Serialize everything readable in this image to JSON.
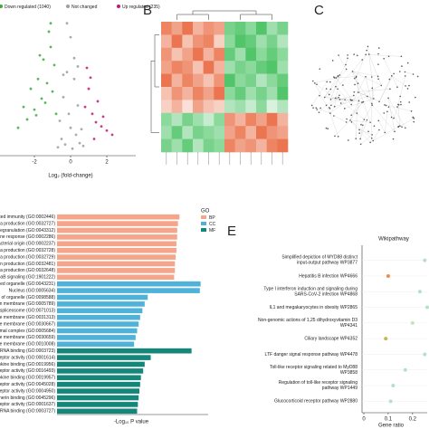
{
  "chart_data": [
    {
      "type": "scatter",
      "x_label": "Log₂ (fold-change)",
      "xlim": [
        -3.9,
        3.6
      ],
      "ylim": [
        0,
        10
      ],
      "xticks": [
        -2,
        0,
        2
      ],
      "series": [
        {
          "name": "Down regulated (1040)",
          "color": "#3daa3d",
          "x": [
            -0.9,
            -1.1,
            -1.3,
            -1.6,
            -2.0,
            -2.4,
            -1.2,
            -1.5,
            -1.8,
            -2.9,
            -1.0,
            -1.4,
            -2.2,
            -0.8,
            -1.7,
            -1.9,
            -2.6,
            -1.1
          ],
          "values": [
            6.5,
            7.8,
            5.2,
            4.1,
            3.3,
            2.6,
            8.9,
            6.9,
            5.5,
            2.0,
            4.6,
            3.8,
            4.8,
            3.0,
            7.2,
            2.9,
            3.5,
            9.5
          ]
        },
        {
          "name": "Not changed",
          "color": "#9e9e9e",
          "x": [
            -0.6,
            -0.4,
            -0.2,
            0,
            0.2,
            0.4,
            0.6,
            -0.5,
            -0.3,
            0.1,
            0.3,
            0.5,
            -0.1,
            0.0,
            -0.7,
            0.7,
            -0.2,
            0.2,
            0.4,
            -0.4
          ],
          "values": [
            2.5,
            4.2,
            6.0,
            8.5,
            5.5,
            3.6,
            1.9,
            1.2,
            0.8,
            0.5,
            1.5,
            0.9,
            3.0,
            2.0,
            0.6,
            0.7,
            9.5,
            7.0,
            6.4,
            5.8
          ]
        },
        {
          "name": "Up regulated (235)",
          "color": "#c2187a",
          "x": [
            0.8,
            1.0,
            1.2,
            1.4,
            1.7,
            2.0,
            2.3,
            1.1,
            1.5,
            0.9,
            1.8,
            1.3
          ],
          "values": [
            3.5,
            4.8,
            3.0,
            2.4,
            2.1,
            1.8,
            1.5,
            5.6,
            3.9,
            6.3,
            2.8,
            1.2
          ]
        }
      ]
    },
    {
      "type": "heatmap",
      "panel": "B",
      "matrix": [
        [
          0.8,
          0.6,
          0.9,
          0.5,
          0.7,
          0.6,
          -0.7,
          -0.8,
          -0.6,
          -0.9,
          -0.5,
          -0.7
        ],
        [
          0.5,
          0.9,
          0.4,
          0.7,
          0.8,
          0.3,
          -0.6,
          -0.9,
          -0.8,
          -0.5,
          -0.7,
          -0.4
        ],
        [
          0.7,
          0.4,
          0.6,
          0.9,
          0.5,
          0.8,
          -0.8,
          -0.5,
          -0.9,
          -0.6,
          -0.8,
          -0.6
        ],
        [
          0.6,
          0.8,
          0.7,
          0.4,
          0.9,
          0.5,
          -0.5,
          -0.7,
          -0.6,
          -0.8,
          -0.9,
          -0.5
        ],
        [
          0.9,
          0.5,
          0.8,
          0.6,
          0.4,
          0.7,
          -0.9,
          -0.6,
          -0.7,
          -0.4,
          -0.6,
          -0.8
        ],
        [
          0.4,
          0.7,
          0.5,
          0.8,
          0.6,
          0.9,
          -0.6,
          -0.8,
          -0.5,
          -0.7,
          -0.5,
          -0.9
        ],
        [
          0.3,
          0.5,
          0.2,
          0.6,
          0.4,
          0.3,
          -0.4,
          -0.5,
          -0.3,
          -0.6,
          -0.2,
          -0.4
        ],
        [
          -0.6,
          -0.4,
          -0.7,
          -0.5,
          -0.3,
          -0.6,
          0.7,
          0.5,
          0.8,
          0.6,
          0.9,
          0.5
        ],
        [
          -0.5,
          -0.8,
          -0.4,
          -0.7,
          -0.6,
          -0.5,
          0.6,
          0.8,
          0.5,
          0.9,
          0.7,
          0.6
        ],
        [
          -0.7,
          -0.5,
          -0.8,
          -0.4,
          -0.7,
          -0.6,
          0.8,
          0.6,
          0.7,
          0.5,
          0.8,
          0.9
        ]
      ],
      "colors": [
        "#3fbf5a",
        "#ffffff",
        "#e8663c"
      ]
    },
    {
      "type": "network",
      "panel": "C"
    },
    {
      "type": "barh",
      "x_label": "-Log₁₀ P value",
      "legend_title": "GO",
      "xlim": [
        0,
        20
      ],
      "groups": [
        {
          "name": "BP",
          "color": "#f4a58a"
        },
        {
          "name": "CC",
          "color": "#4fb3d9"
        },
        {
          "name": "MF",
          "color": "#15877a"
        }
      ],
      "categories": [
        "Neutrophil mediated immunity (GO:0002446)",
        "ion of interferon-alpha production (GO:0032727)",
        "Neutrophil degranulation (GO:0043312)",
        "tion involved in immune response (GO:0002286)",
        "ponse to molecule of bacterial origin (GO:0002237)",
        "ion of interferon-beta production (GO:0032728)",
        "ion of interferon-gamma production (GO:0032729)",
        "on of type I interferon production (GO:0032481)",
        "lation of interferon-beta production (GO:0032648)",
        "n of NIK/NF-kappaB signaling (GO:1901222)",
        "ine membrane-bounded organelle (GO:0043231)",
        "Nucleus (GO:0005634)",
        "bounding membrane of organelle (GO:0098588)",
        "endoplasmic reticulum membrane (GO:0005789)",
        "pe catalytic step 2 spliceosome (GO:0071013)",
        "ition of endosome membrane (GO:0031313)",
        "Secretory granule membrane (GO:0030667)",
        "U2-type spliceosomal complex (GO:0005684)",
        "Cytoplasmic vesicle membrane (GO:0030659)",
        "Endosome membrane (GO:0010008)",
        "RNA binding (GO:0003723)",
        "ergic nucleotide receptor activity (GO:0001614)",
        "Chemokine binding (GO:0019956)",
        "C-C chemokine receptor activity (GO:0016493)",
        "C-C chemokine binding (GO:0019957)",
        "ergic nucleotide receptor activity (GO:0045028)",
        "Chemokine receptor activity (GO:0004950)",
        "Cadherin binding (GO:0045296)",
        "chemoattractant receptor activity (GO:0001637)",
        "Single-stranded RNA binding (GO:0003727)"
      ],
      "group_of": [
        "BP",
        "BP",
        "BP",
        "BP",
        "BP",
        "BP",
        "BP",
        "BP",
        "BP",
        "BP",
        "CC",
        "CC",
        "CC",
        "CC",
        "CC",
        "CC",
        "CC",
        "CC",
        "CC",
        "CC",
        "MF",
        "MF",
        "MF",
        "MF",
        "MF",
        "MF",
        "MF",
        "MF",
        "MF",
        "MF"
      ],
      "values": [
        16.2,
        16.0,
        15.9,
        15.9,
        15.8,
        15.8,
        15.7,
        15.6,
        15.6,
        15.5,
        19.0,
        18.9,
        12.0,
        11.6,
        11.3,
        11.0,
        10.8,
        10.6,
        10.4,
        10.2,
        17.8,
        12.4,
        11.6,
        11.4,
        11.1,
        11.0,
        10.9,
        10.8,
        10.7,
        10.6
      ]
    },
    {
      "type": "dot",
      "panel": "E",
      "title": "Wikipathway",
      "x_label": "Gene ratio",
      "xlim": [
        0,
        0.26
      ],
      "xticks": [
        0,
        0.1,
        0.2
      ],
      "categories": [
        "Simplified depiction of MYD88 distinct input-output pathway WP3877",
        "Hepatitis B infection WP4666",
        "Type I interferon induction and signaling during SARS-CoV-2 infection WP4868",
        "IL1 and megakaryocytes in obesity WP2865",
        "Non-genomic actions of 1,25 dihydroxyvitamin D3 WP4341",
        "Ciliary landscape WP4352",
        "LTF danger signal response pathway WP4478",
        "Toll-like receptor signaling related to MyD88 WP3858",
        "Regulation of toll-like receptor signaling pathway WP1449",
        "Glucocorticoid receptor pathway WP2880"
      ],
      "values": [
        0.25,
        0.1,
        0.23,
        0.26,
        0.2,
        0.09,
        0.25,
        0.17,
        0.12,
        0.11
      ],
      "colors": [
        "#b8e0c8",
        "#f08a4b",
        "#b8e0c8",
        "#b8e0c8",
        "#c8e2c0",
        "#c8b45a",
        "#b8e0c8",
        "#b8e0c8",
        "#b8e0c8",
        "#b8e0c8"
      ]
    }
  ]
}
